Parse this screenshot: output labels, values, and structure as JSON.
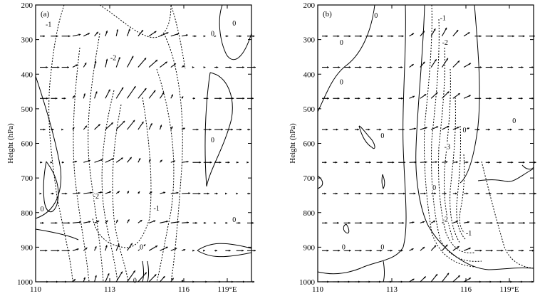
{
  "chart_data": [
    {
      "type": "contour",
      "panel_label": "(a)",
      "ylabel": "Height (hPa)",
      "xlabel": "",
      "x_ticks": [
        "110",
        "113",
        "116",
        "119°E"
      ],
      "x_tick_values": [
        110,
        113,
        116,
        119
      ],
      "y_ticks": [
        "200",
        "300",
        "400",
        "500",
        "600",
        "700",
        "800",
        "900",
        "1000"
      ],
      "y_tick_values": [
        200,
        300,
        400,
        500,
        600,
        700,
        800,
        900,
        1000
      ],
      "xlim": [
        110,
        120
      ],
      "ylim": [
        1000,
        200
      ],
      "contour_labels": [
        {
          "text": "-1",
          "x": 110.6,
          "y": 258
        },
        {
          "text": "-2",
          "x": 113.6,
          "y": 355
        },
        {
          "text": "-2",
          "x": 112.8,
          "y": 755
        },
        {
          "text": "-1",
          "x": 115.6,
          "y": 790
        },
        {
          "text": "0",
          "x": 118.2,
          "y": 285
        },
        {
          "text": "0",
          "x": 119.2,
          "y": 255
        },
        {
          "text": "0",
          "x": 118.2,
          "y": 592
        },
        {
          "text": "0",
          "x": 110.3,
          "y": 792
        },
        {
          "text": "0",
          "x": 119.2,
          "y": 823
        },
        {
          "text": "0",
          "x": 114.9,
          "y": 902
        },
        {
          "text": "0",
          "x": 114.6,
          "y": 998
        }
      ]
    },
    {
      "type": "contour",
      "panel_label": "(b)",
      "ylabel": "Height (hPa)",
      "xlabel": "",
      "x_ticks": [
        "110",
        "113",
        "116",
        "119°E"
      ],
      "x_tick_values": [
        110,
        113,
        116,
        119
      ],
      "y_ticks": [
        "200",
        "300",
        "400",
        "500",
        "600",
        "700",
        "800",
        "900",
        "1000"
      ],
      "y_tick_values": [
        200,
        300,
        400,
        500,
        600,
        700,
        800,
        900,
        1000
      ],
      "xlim": [
        110,
        120
      ],
      "ylim": [
        1000,
        200
      ],
      "contour_labels": [
        {
          "text": "0",
          "x": 112.7,
          "y": 232
        },
        {
          "text": "0",
          "x": 111.1,
          "y": 310
        },
        {
          "text": "-1",
          "x": 115.8,
          "y": 240
        },
        {
          "text": "-2",
          "x": 115.9,
          "y": 310
        },
        {
          "text": "0",
          "x": 111.1,
          "y": 425
        },
        {
          "text": "0",
          "x": 113.0,
          "y": 580
        },
        {
          "text": "0",
          "x": 116.8,
          "y": 563
        },
        {
          "text": "0",
          "x": 119.1,
          "y": 537
        },
        {
          "text": "-3",
          "x": 116.0,
          "y": 612
        },
        {
          "text": "0",
          "x": 115.4,
          "y": 730
        },
        {
          "text": "-2",
          "x": 115.9,
          "y": 822
        },
        {
          "text": "-1",
          "x": 117.0,
          "y": 862
        },
        {
          "text": "0",
          "x": 111.2,
          "y": 902
        },
        {
          "text": "0",
          "x": 113.0,
          "y": 902
        }
      ]
    }
  ]
}
